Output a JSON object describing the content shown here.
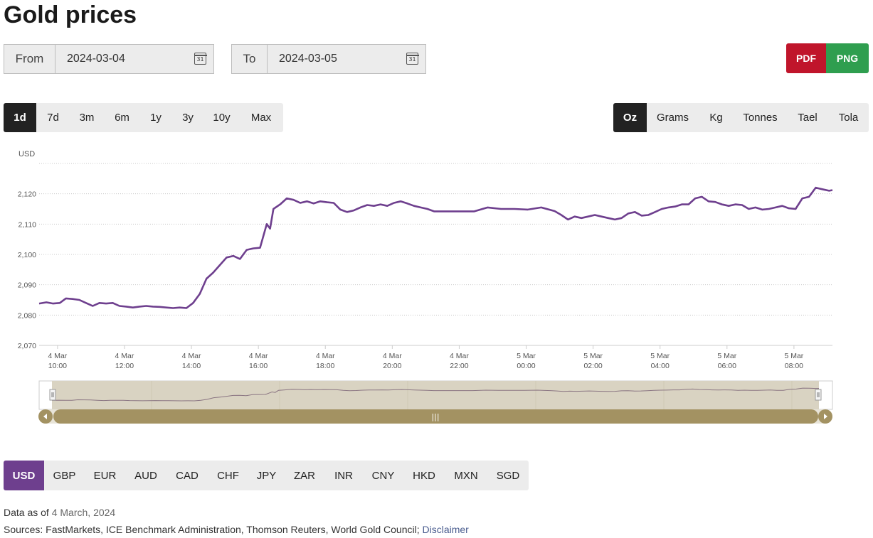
{
  "page": {
    "title": "Gold prices"
  },
  "dates": {
    "from_label": "From",
    "from_value": "2024-03-04",
    "to_label": "To",
    "to_value": "2024-03-05",
    "calendar_day": "31"
  },
  "export": {
    "pdf": "PDF",
    "png": "PNG",
    "pdf_color": "#c0152b",
    "png_color": "#2f9e4f"
  },
  "ranges": [
    "1d",
    "7d",
    "3m",
    "6m",
    "1y",
    "3y",
    "10y",
    "Max"
  ],
  "active_range": "1d",
  "units": [
    "Oz",
    "Grams",
    "Kg",
    "Tonnes",
    "Tael",
    "Tola"
  ],
  "active_unit": "Oz",
  "currencies": [
    "USD",
    "GBP",
    "EUR",
    "AUD",
    "CAD",
    "CHF",
    "JPY",
    "ZAR",
    "INR",
    "CNY",
    "HKD",
    "MXN",
    "SGD"
  ],
  "active_currency": "USD",
  "accent_color": "#6e3f8e",
  "footer": {
    "data_as_of_label": "Data as of",
    "data_as_of_date": "4 March, 2024",
    "sources": "Sources: FastMarkets, ICE Benchmark Administration, Thomson Reuters, World Gold Council;",
    "disclaimer": "Disclaimer"
  },
  "navigator": {
    "handle_glyph": "|||"
  },
  "chart_data": {
    "type": "line",
    "ylabel": "USD",
    "ylim": [
      2070,
      2130
    ],
    "yticks": [
      2070,
      2080,
      2090,
      2100,
      2110,
      2120
    ],
    "ytick_labels": [
      "2,070",
      "2,080",
      "2,090",
      "2,100",
      "2,110",
      "2,120"
    ],
    "xlim": [
      9.45,
      33.15
    ],
    "xtick_hours": [
      10,
      12,
      14,
      16,
      18,
      20,
      22,
      24,
      26,
      28,
      30,
      32
    ],
    "xtick_labels": [
      [
        "4 Mar",
        "10:00"
      ],
      [
        "4 Mar",
        "12:00"
      ],
      [
        "4 Mar",
        "14:00"
      ],
      [
        "4 Mar",
        "16:00"
      ],
      [
        "4 Mar",
        "18:00"
      ],
      [
        "4 Mar",
        "20:00"
      ],
      [
        "4 Mar",
        "22:00"
      ],
      [
        "5 Mar",
        "00:00"
      ],
      [
        "5 Mar",
        "02:00"
      ],
      [
        "5 Mar",
        "04:00"
      ],
      [
        "5 Mar",
        "06:00"
      ],
      [
        "5 Mar",
        "08:00"
      ]
    ],
    "grid": true,
    "line_color": "#6e3f8e",
    "series": [
      {
        "x": [
          "2024-03-04 09:27",
          "2024-03-04 09:40",
          "2024-03-04 09:52",
          "2024-03-04 10:04",
          "2024-03-04 10:15",
          "2024-03-04 10:27",
          "2024-03-04 10:39",
          "2024-03-04 10:51",
          "2024-03-04 11:03",
          "2024-03-04 11:15",
          "2024-03-04 11:27",
          "2024-03-04 11:39",
          "2024-03-04 11:51",
          "2024-03-04 12:03",
          "2024-03-04 12:15",
          "2024-03-04 12:27",
          "2024-03-04 12:39",
          "2024-03-04 12:51",
          "2024-03-04 13:03",
          "2024-03-04 13:15",
          "2024-03-04 13:27",
          "2024-03-04 13:39",
          "2024-03-04 13:51",
          "2024-03-04 14:03",
          "2024-03-04 14:15",
          "2024-03-04 14:27",
          "2024-03-04 14:39",
          "2024-03-04 14:51",
          "2024-03-04 15:03",
          "2024-03-04 15:15",
          "2024-03-04 15:27",
          "2024-03-04 15:39",
          "2024-03-04 15:51",
          "2024-03-04 16:03",
          "2024-03-04 16:15",
          "2024-03-04 16:21",
          "2024-03-04 16:27",
          "2024-03-04 16:39",
          "2024-03-04 16:51",
          "2024-03-04 17:03",
          "2024-03-04 17:15",
          "2024-03-04 17:27",
          "2024-03-04 17:39",
          "2024-03-04 17:51",
          "2024-03-04 18:03",
          "2024-03-04 18:15",
          "2024-03-04 18:27",
          "2024-03-04 18:39",
          "2024-03-04 18:51",
          "2024-03-04 19:03",
          "2024-03-04 19:15",
          "2024-03-04 19:27",
          "2024-03-04 19:39",
          "2024-03-04 19:51",
          "2024-03-04 20:03",
          "2024-03-04 20:15",
          "2024-03-04 20:27",
          "2024-03-04 20:39",
          "2024-03-04 20:51",
          "2024-03-04 21:03",
          "2024-03-04 21:15",
          "2024-03-04 21:39",
          "2024-03-04 22:03",
          "2024-03-04 22:27",
          "2024-03-04 22:51",
          "2024-03-04 23:15",
          "2024-03-04 23:39",
          "2024-03-05 00:03",
          "2024-03-05 00:27",
          "2024-03-05 00:51",
          "2024-03-05 01:03",
          "2024-03-05 01:15",
          "2024-03-05 01:27",
          "2024-03-05 01:39",
          "2024-03-05 01:51",
          "2024-03-05 02:03",
          "2024-03-05 02:15",
          "2024-03-05 02:27",
          "2024-03-05 02:39",
          "2024-03-05 02:51",
          "2024-03-05 03:03",
          "2024-03-05 03:15",
          "2024-03-05 03:27",
          "2024-03-05 03:39",
          "2024-03-05 03:51",
          "2024-03-05 04:03",
          "2024-03-05 04:15",
          "2024-03-05 04:27",
          "2024-03-05 04:39",
          "2024-03-05 04:51",
          "2024-03-05 05:03",
          "2024-03-05 05:15",
          "2024-03-05 05:27",
          "2024-03-05 05:39",
          "2024-03-05 05:51",
          "2024-03-05 06:03",
          "2024-03-05 06:15",
          "2024-03-05 06:27",
          "2024-03-05 06:39",
          "2024-03-05 06:51",
          "2024-03-05 07:03",
          "2024-03-05 07:15",
          "2024-03-05 07:27",
          "2024-03-05 07:39",
          "2024-03-05 07:51",
          "2024-03-05 08:03",
          "2024-03-05 08:15",
          "2024-03-05 08:27",
          "2024-03-05 08:39",
          "2024-03-05 08:51",
          "2024-03-05 09:03",
          "2024-03-05 09:09"
        ],
        "y": [
          2083.8,
          2084.2,
          2083.8,
          2084.0,
          2085.5,
          2085.3,
          2085.0,
          2084.0,
          2083.0,
          2084.0,
          2083.8,
          2084.0,
          2083.0,
          2082.8,
          2082.5,
          2082.8,
          2083.0,
          2082.8,
          2082.7,
          2082.5,
          2082.3,
          2082.5,
          2082.3,
          2084.0,
          2087.0,
          2092.0,
          2094.0,
          2096.5,
          2099.0,
          2099.5,
          2098.5,
          2101.5,
          2102.0,
          2102.2,
          2110.0,
          2108.5,
          2115.0,
          2116.5,
          2118.5,
          2118.0,
          2117.0,
          2117.5,
          2116.8,
          2117.5,
          2117.2,
          2117.0,
          2114.8,
          2114.0,
          2114.5,
          2115.5,
          2116.3,
          2116.0,
          2116.5,
          2116.0,
          2117.0,
          2117.5,
          2116.8,
          2116.0,
          2115.5,
          2115.0,
          2114.2,
          2114.2,
          2114.2,
          2114.2,
          2115.5,
          2115.0,
          2115.0,
          2114.8,
          2115.5,
          2114.3,
          2113.0,
          2111.5,
          2112.5,
          2112.0,
          2112.5,
          2113.0,
          2112.5,
          2112.0,
          2111.5,
          2112.0,
          2113.5,
          2114.0,
          2112.8,
          2113.0,
          2114.0,
          2115.0,
          2115.5,
          2115.8,
          2116.5,
          2116.5,
          2118.5,
          2119.0,
          2117.5,
          2117.3,
          2116.5,
          2116.0,
          2116.5,
          2116.3,
          2115.0,
          2115.5,
          2114.8,
          2115.0,
          2115.5,
          2116.0,
          2115.2,
          2115.0,
          2118.5,
          2119.0,
          2122.0,
          2121.5,
          2121.0,
          2121.2
        ]
      }
    ]
  }
}
